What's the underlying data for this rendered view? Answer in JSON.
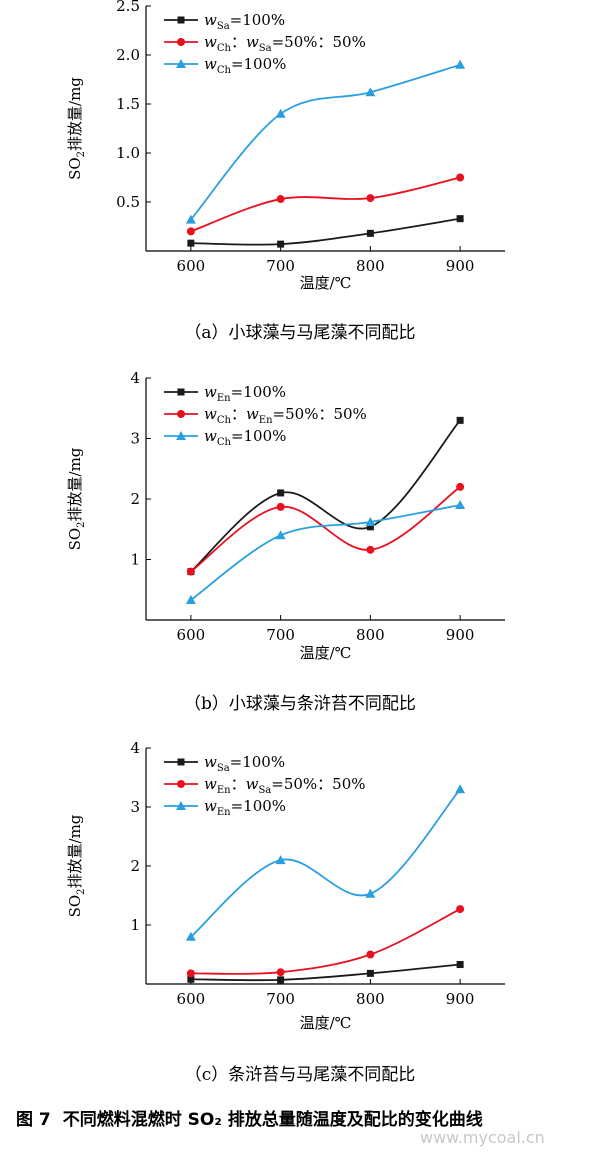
{
  "chart_data": [
    {
      "type": "line",
      "caption": "（a）小球藻与马尾藻不同配比",
      "xlabel": "温度/℃",
      "ylabel": "SO2排放量/mg",
      "x": [
        600,
        700,
        800,
        900
      ],
      "xlim": [
        550,
        950
      ],
      "ylim": [
        0.0,
        2.5
      ],
      "yticks": [
        0.5,
        1.0,
        1.5,
        2.0,
        2.5
      ],
      "ytick_labels": [
        "0.5",
        "1.0",
        "1.5",
        "2.0",
        "2.5"
      ],
      "legend_position": "top-left",
      "series": [
        {
          "name": "wSa=100%",
          "color": "#1a1a1a",
          "marker": "square",
          "values": [
            0.08,
            0.07,
            0.18,
            0.33
          ]
        },
        {
          "name": "wCh：wSa=50%：50%",
          "color": "#e8101f",
          "marker": "circle",
          "values": [
            0.2,
            0.53,
            0.54,
            0.75
          ]
        },
        {
          "name": "wCh=100%",
          "color": "#2a9fe0",
          "marker": "triangle",
          "values": [
            0.32,
            1.4,
            1.62,
            1.9
          ]
        }
      ]
    },
    {
      "type": "line",
      "caption": "（b）小球藻与条浒苔不同配比",
      "xlabel": "温度/℃",
      "ylabel": "SO2排放量/mg",
      "x": [
        600,
        700,
        800,
        900
      ],
      "xlim": [
        550,
        950
      ],
      "ylim": [
        0,
        4
      ],
      "yticks": [
        1,
        2,
        3,
        4
      ],
      "ytick_labels": [
        "1",
        "2",
        "3",
        "4"
      ],
      "legend_position": "top-left",
      "series": [
        {
          "name": "wEn=100%",
          "color": "#1a1a1a",
          "marker": "square",
          "values": [
            0.8,
            2.1,
            1.54,
            3.3
          ]
        },
        {
          "name": "wCh：wEn=50%：50%",
          "color": "#e8101f",
          "marker": "circle",
          "values": [
            0.8,
            1.87,
            1.16,
            2.2
          ]
        },
        {
          "name": "wCh=100%",
          "color": "#2a9fe0",
          "marker": "triangle",
          "values": [
            0.33,
            1.4,
            1.62,
            1.9
          ]
        }
      ]
    },
    {
      "type": "line",
      "caption": "（c）条浒苔与马尾藻不同配比",
      "xlabel": "温度/℃",
      "ylabel": "SO2排放量/mg",
      "x": [
        600,
        700,
        800,
        900
      ],
      "xlim": [
        550,
        950
      ],
      "ylim": [
        0,
        4
      ],
      "yticks": [
        1,
        2,
        3,
        4
      ],
      "ytick_labels": [
        "1",
        "2",
        "3",
        "4"
      ],
      "legend_position": "top-left",
      "series": [
        {
          "name": "wSa=100%",
          "color": "#1a1a1a",
          "marker": "square",
          "values": [
            0.08,
            0.07,
            0.18,
            0.33
          ]
        },
        {
          "name": "wEn：wSa=50%：50%",
          "color": "#e8101f",
          "marker": "circle",
          "values": [
            0.18,
            0.2,
            0.5,
            1.27
          ]
        },
        {
          "name": "wEn=100%",
          "color": "#2a9fe0",
          "marker": "triangle",
          "values": [
            0.8,
            2.1,
            1.53,
            3.3
          ]
        }
      ]
    }
  ],
  "figure": {
    "number": "图 7",
    "title": "不同燃料混燃时 SO₂ 排放总量随温度及配比的变化曲线"
  },
  "watermark": "www.mycoal.cn"
}
